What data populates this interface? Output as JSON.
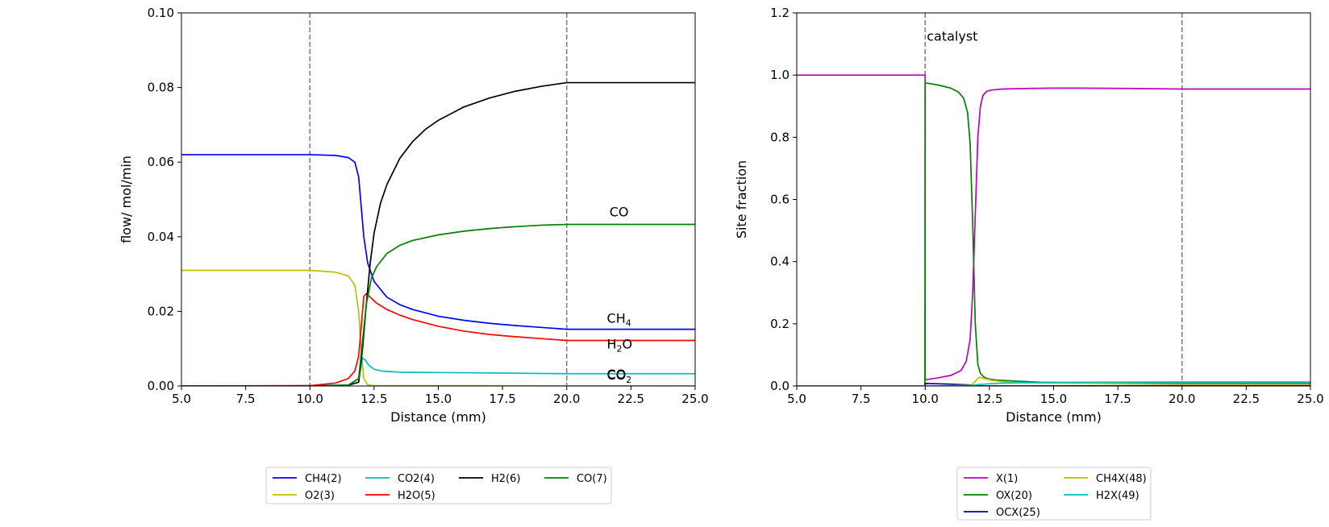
{
  "chart_data": [
    {
      "type": "line",
      "xlabel": "Distance (mm)",
      "ylabel": "flow/ mol/min",
      "xlim": [
        5.0,
        25.0
      ],
      "ylim": [
        0.0,
        0.1
      ],
      "xticks": [
        "5.0",
        "7.5",
        "10.0",
        "12.5",
        "15.0",
        "17.5",
        "20.0",
        "22.5",
        "25.0"
      ],
      "yticks": [
        "0.00",
        "0.02",
        "0.04",
        "0.06",
        "0.08",
        "0.10"
      ],
      "vlines": [
        10.0,
        20.0
      ],
      "grid": false,
      "legend_placement": "below",
      "annotations": [
        {
          "text": "CO",
          "x": 21.6,
          "y": 0.0455
        },
        {
          "text": "CH",
          "sub": "4",
          "x": 21.5,
          "y": 0.017
        },
        {
          "text": "H",
          "sub": "2",
          "tail": "O",
          "x": 21.5,
          "y": 0.01
        },
        {
          "text": "CO",
          "sub": "2",
          "x": 21.5,
          "y": 0.0017
        },
        {
          "text": "CO",
          "x": 21.5,
          "y": 0.0019
        }
      ],
      "series": [
        {
          "name": "CH4(2)",
          "color": "#0000ff",
          "x": [
            5.0,
            10.0,
            11.0,
            11.5,
            11.75,
            11.9,
            12.0,
            12.1,
            12.25,
            12.5,
            13.0,
            13.5,
            14.0,
            15.0,
            16.0,
            17.0,
            18.0,
            19.0,
            20.0,
            25.0
          ],
          "y": [
            0.062,
            0.062,
            0.0618,
            0.0612,
            0.06,
            0.056,
            0.048,
            0.04,
            0.033,
            0.028,
            0.0238,
            0.0218,
            0.0205,
            0.0187,
            0.0176,
            0.0168,
            0.0162,
            0.0157,
            0.0152,
            0.0152
          ]
        },
        {
          "name": "O2(3)",
          "color": "#bfbf00",
          "x": [
            5.0,
            10.0,
            11.0,
            11.5,
            11.75,
            11.9,
            12.0,
            12.1,
            12.25,
            12.5,
            25.0
          ],
          "y": [
            0.031,
            0.031,
            0.0305,
            0.0295,
            0.027,
            0.02,
            0.009,
            0.002,
            0.0003,
            0.0001,
            0.0
          ]
        },
        {
          "name": "CO2(4)",
          "color": "#00bfbf",
          "x": [
            5.0,
            10.0,
            11.5,
            11.9,
            12.05,
            12.15,
            12.3,
            12.5,
            12.8,
            13.5,
            15.0,
            20.0,
            25.0
          ],
          "y": [
            0.0,
            0.0001,
            0.0003,
            0.002,
            0.0075,
            0.007,
            0.0055,
            0.0045,
            0.004,
            0.0037,
            0.0036,
            0.0033,
            0.0033
          ]
        },
        {
          "name": "H2O(5)",
          "color": "#ff0000",
          "x": [
            5.0,
            10.0,
            11.0,
            11.5,
            11.75,
            11.9,
            12.0,
            12.1,
            12.2,
            12.35,
            12.6,
            13.0,
            13.5,
            14.0,
            15.0,
            16.0,
            17.0,
            18.0,
            19.0,
            20.0,
            25.0
          ],
          "y": [
            0.0,
            0.0001,
            0.0008,
            0.002,
            0.004,
            0.008,
            0.016,
            0.024,
            0.0248,
            0.0238,
            0.0222,
            0.0205,
            0.019,
            0.0178,
            0.016,
            0.0147,
            0.0138,
            0.0132,
            0.0127,
            0.0122,
            0.0122
          ]
        },
        {
          "name": "H2(6)",
          "color": "#000000",
          "x": [
            5.0,
            10.0,
            11.5,
            11.9,
            12.05,
            12.2,
            12.35,
            12.5,
            12.75,
            13.0,
            13.5,
            14.0,
            14.5,
            15.0,
            16.0,
            17.0,
            18.0,
            19.0,
            20.0,
            25.0
          ],
          "y": [
            0.0,
            0.0,
            0.0002,
            0.001,
            0.01,
            0.022,
            0.033,
            0.041,
            0.049,
            0.054,
            0.061,
            0.0655,
            0.0688,
            0.0712,
            0.0748,
            0.0772,
            0.079,
            0.0803,
            0.0813,
            0.0813
          ]
        },
        {
          "name": "CO(7)",
          "color": "#008000",
          "x": [
            5.0,
            10.0,
            11.5,
            11.9,
            12.05,
            12.2,
            12.4,
            12.6,
            13.0,
            13.5,
            14.0,
            15.0,
            16.0,
            17.0,
            18.0,
            19.0,
            20.0,
            25.0
          ],
          "y": [
            0.0,
            0.0,
            0.0002,
            0.002,
            0.012,
            0.022,
            0.029,
            0.032,
            0.0355,
            0.0377,
            0.039,
            0.0405,
            0.0415,
            0.0422,
            0.0427,
            0.0431,
            0.0433,
            0.0433
          ]
        }
      ],
      "legend": {
        "columns": [
          [
            "CH4(2)",
            "O2(3)"
          ],
          [
            "CO2(4)",
            "H2O(5)"
          ],
          [
            "H2(6)"
          ],
          [
            "CO(7)"
          ]
        ]
      }
    },
    {
      "type": "line",
      "xlabel": "Distance (mm)",
      "ylabel": "Site fraction",
      "xlim": [
        5.0,
        25.0
      ],
      "ylim": [
        0.0,
        1.2
      ],
      "xticks": [
        "5.0",
        "7.5",
        "10.0",
        "12.5",
        "15.0",
        "17.5",
        "20.0",
        "22.5",
        "25.0"
      ],
      "yticks": [
        "0.0",
        "0.2",
        "0.4",
        "0.6",
        "0.8",
        "1.0",
        "1.2"
      ],
      "vlines": [
        10.0,
        20.0
      ],
      "grid": false,
      "legend_placement": "below",
      "annotations": [
        {
          "text": "catalyst",
          "x": 10.0,
          "y": 1.11
        }
      ],
      "series": [
        {
          "name": "X(1)",
          "color": "#bf00bf",
          "x": [
            5.0,
            10.0,
            10.0,
            10.5,
            11.0,
            11.4,
            11.6,
            11.75,
            11.85,
            11.95,
            12.05,
            12.15,
            12.25,
            12.4,
            12.6,
            13.0,
            14.0,
            15.0,
            16.0,
            18.0,
            20.0,
            25.0
          ],
          "y": [
            1.0,
            1.0,
            0.02,
            0.026,
            0.034,
            0.05,
            0.08,
            0.15,
            0.3,
            0.55,
            0.8,
            0.9,
            0.935,
            0.948,
            0.952,
            0.955,
            0.957,
            0.958,
            0.958,
            0.957,
            0.955,
            0.955
          ]
        },
        {
          "name": "OX(20)",
          "color": "#008000",
          "x": [
            5.0,
            9.99,
            10.0,
            10.5,
            11.0,
            11.3,
            11.5,
            11.65,
            11.75,
            11.85,
            11.95,
            12.05,
            12.15,
            12.3,
            12.5,
            12.8,
            13.5,
            14.5,
            16.0,
            20.0,
            25.0
          ],
          "y": [
            0.0,
            0.0,
            0.975,
            0.968,
            0.958,
            0.945,
            0.925,
            0.88,
            0.78,
            0.52,
            0.2,
            0.07,
            0.04,
            0.028,
            0.022,
            0.019,
            0.016,
            0.012,
            0.01,
            0.008,
            0.008
          ]
        },
        {
          "name": "OCX(25)",
          "color": "#0000bf",
          "x": [
            5.0,
            9.99,
            10.0,
            11.0,
            11.8,
            12.0,
            12.3,
            13.0,
            20.0,
            25.0
          ],
          "y": [
            0.0,
            0.0,
            0.008,
            0.006,
            0.003,
            0.001,
            0.0,
            0.0,
            0.001,
            0.001
          ]
        },
        {
          "name": "CH4X(48)",
          "color": "#bfbf00",
          "x": [
            5.0,
            10.0,
            11.8,
            11.95,
            12.1,
            12.3,
            12.6,
            13.0,
            14.0,
            20.0,
            25.0
          ],
          "y": [
            0.0,
            0.0,
            0.002,
            0.015,
            0.028,
            0.024,
            0.018,
            0.014,
            0.01,
            0.006,
            0.006
          ]
        },
        {
          "name": "H2X(49)",
          "color": "#00bfbf",
          "x": [
            5.0,
            10.0,
            11.8,
            12.0,
            12.5,
            13.0,
            14.0,
            16.0,
            20.0,
            25.0
          ],
          "y": [
            0.0,
            0.0,
            0.001,
            0.004,
            0.007,
            0.009,
            0.011,
            0.012,
            0.013,
            0.013
          ]
        }
      ],
      "legend": {
        "columns": [
          [
            "X(1)",
            "OX(20)",
            "OCX(25)"
          ],
          [
            "CH4X(48)",
            "H2X(49)"
          ]
        ]
      }
    }
  ]
}
